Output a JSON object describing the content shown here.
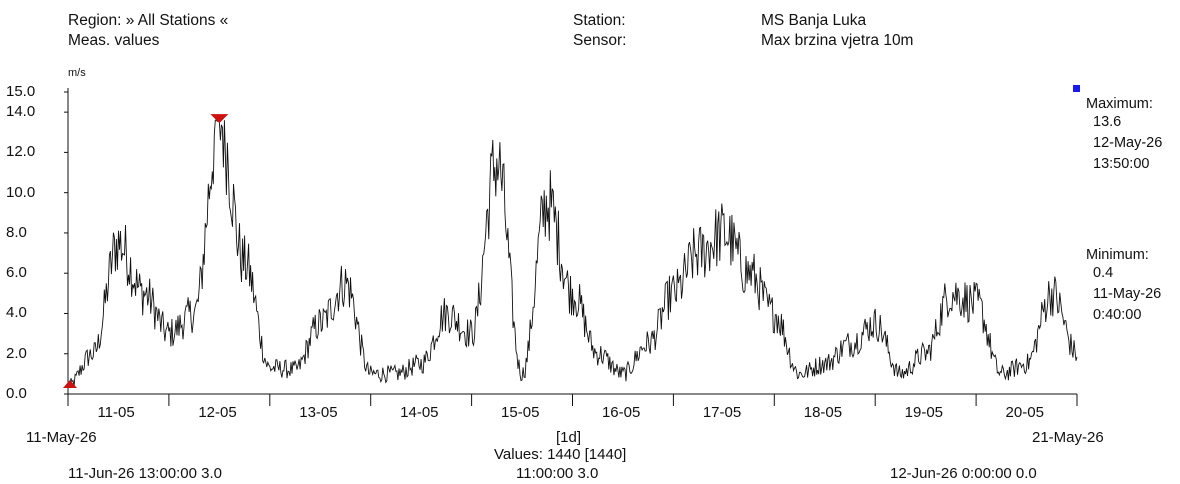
{
  "header": {
    "region_label": "Region: » All Stations «",
    "meas_label": "Meas. values",
    "station_label": "Station:",
    "sensor_label": "Sensor:",
    "station_value": "MS Banja Luka",
    "sensor_value": "Max brzina vjetra 10m"
  },
  "chart_data": {
    "type": "line",
    "ylabel": "m/s",
    "ylim": [
      0,
      15
    ],
    "y_ticks": [
      "15.0",
      "14.0",
      "12.0",
      "10.0",
      "8.0",
      "6.0",
      "4.0",
      "2.0",
      "0.0"
    ],
    "x_ticks": [
      "11-05",
      "12-05",
      "13-05",
      "14-05",
      "15-05",
      "16-05",
      "17-05",
      "18-05",
      "19-05",
      "20-05"
    ],
    "x_start_label": "11-May-26",
    "x_end_label": "21-May-26",
    "interval_label": "[1d]",
    "values_label": "Values: 1440 [1440]",
    "grid": false,
    "series_color": "#111111",
    "marker_color": "#cc1111",
    "max_marker_color": "#1a1aee",
    "x": [
      0,
      0.25,
      0.5,
      0.75,
      1.0,
      1.25,
      1.5,
      1.75,
      2.0,
      2.25,
      2.5,
      2.75,
      3.0,
      3.25,
      3.5,
      3.75,
      4.0,
      4.25,
      4.5,
      4.75,
      5.0,
      5.25,
      5.5,
      5.75,
      6.0,
      6.25,
      6.5,
      6.75,
      7.0,
      7.25,
      7.5,
      7.75,
      8.0,
      8.25,
      8.5,
      8.75,
      9.0,
      9.25,
      9.5,
      9.75,
      10.0
    ],
    "values": [
      0.4,
      2.0,
      7.5,
      5.0,
      3.0,
      4.0,
      13.6,
      6.5,
      1.3,
      1.2,
      3.5,
      5.5,
      1.0,
      1.0,
      1.5,
      4.0,
      3.0,
      11.5,
      1.0,
      9.5,
      5.0,
      2.0,
      1.0,
      2.5,
      5.0,
      7.0,
      8.0,
      6.0,
      4.0,
      1.0,
      1.5,
      2.5,
      3.5,
      1.0,
      2.0,
      5.0,
      4.5,
      1.0,
      1.5,
      5.0,
      2.0
    ],
    "maximum": {
      "label": "Maximum:",
      "value": "13.6",
      "date": "12-May-26",
      "time": "13:50:00"
    },
    "minimum": {
      "label": "Minimum:",
      "value": "0.4",
      "date": "11-May-26",
      "time": "0:40:00"
    }
  },
  "footer": {
    "left": "11-Jun-26 13:00:00   3.0",
    "center": "11:00:00   3.0",
    "right": "12-Jun-26 0:00:00   0.0"
  }
}
